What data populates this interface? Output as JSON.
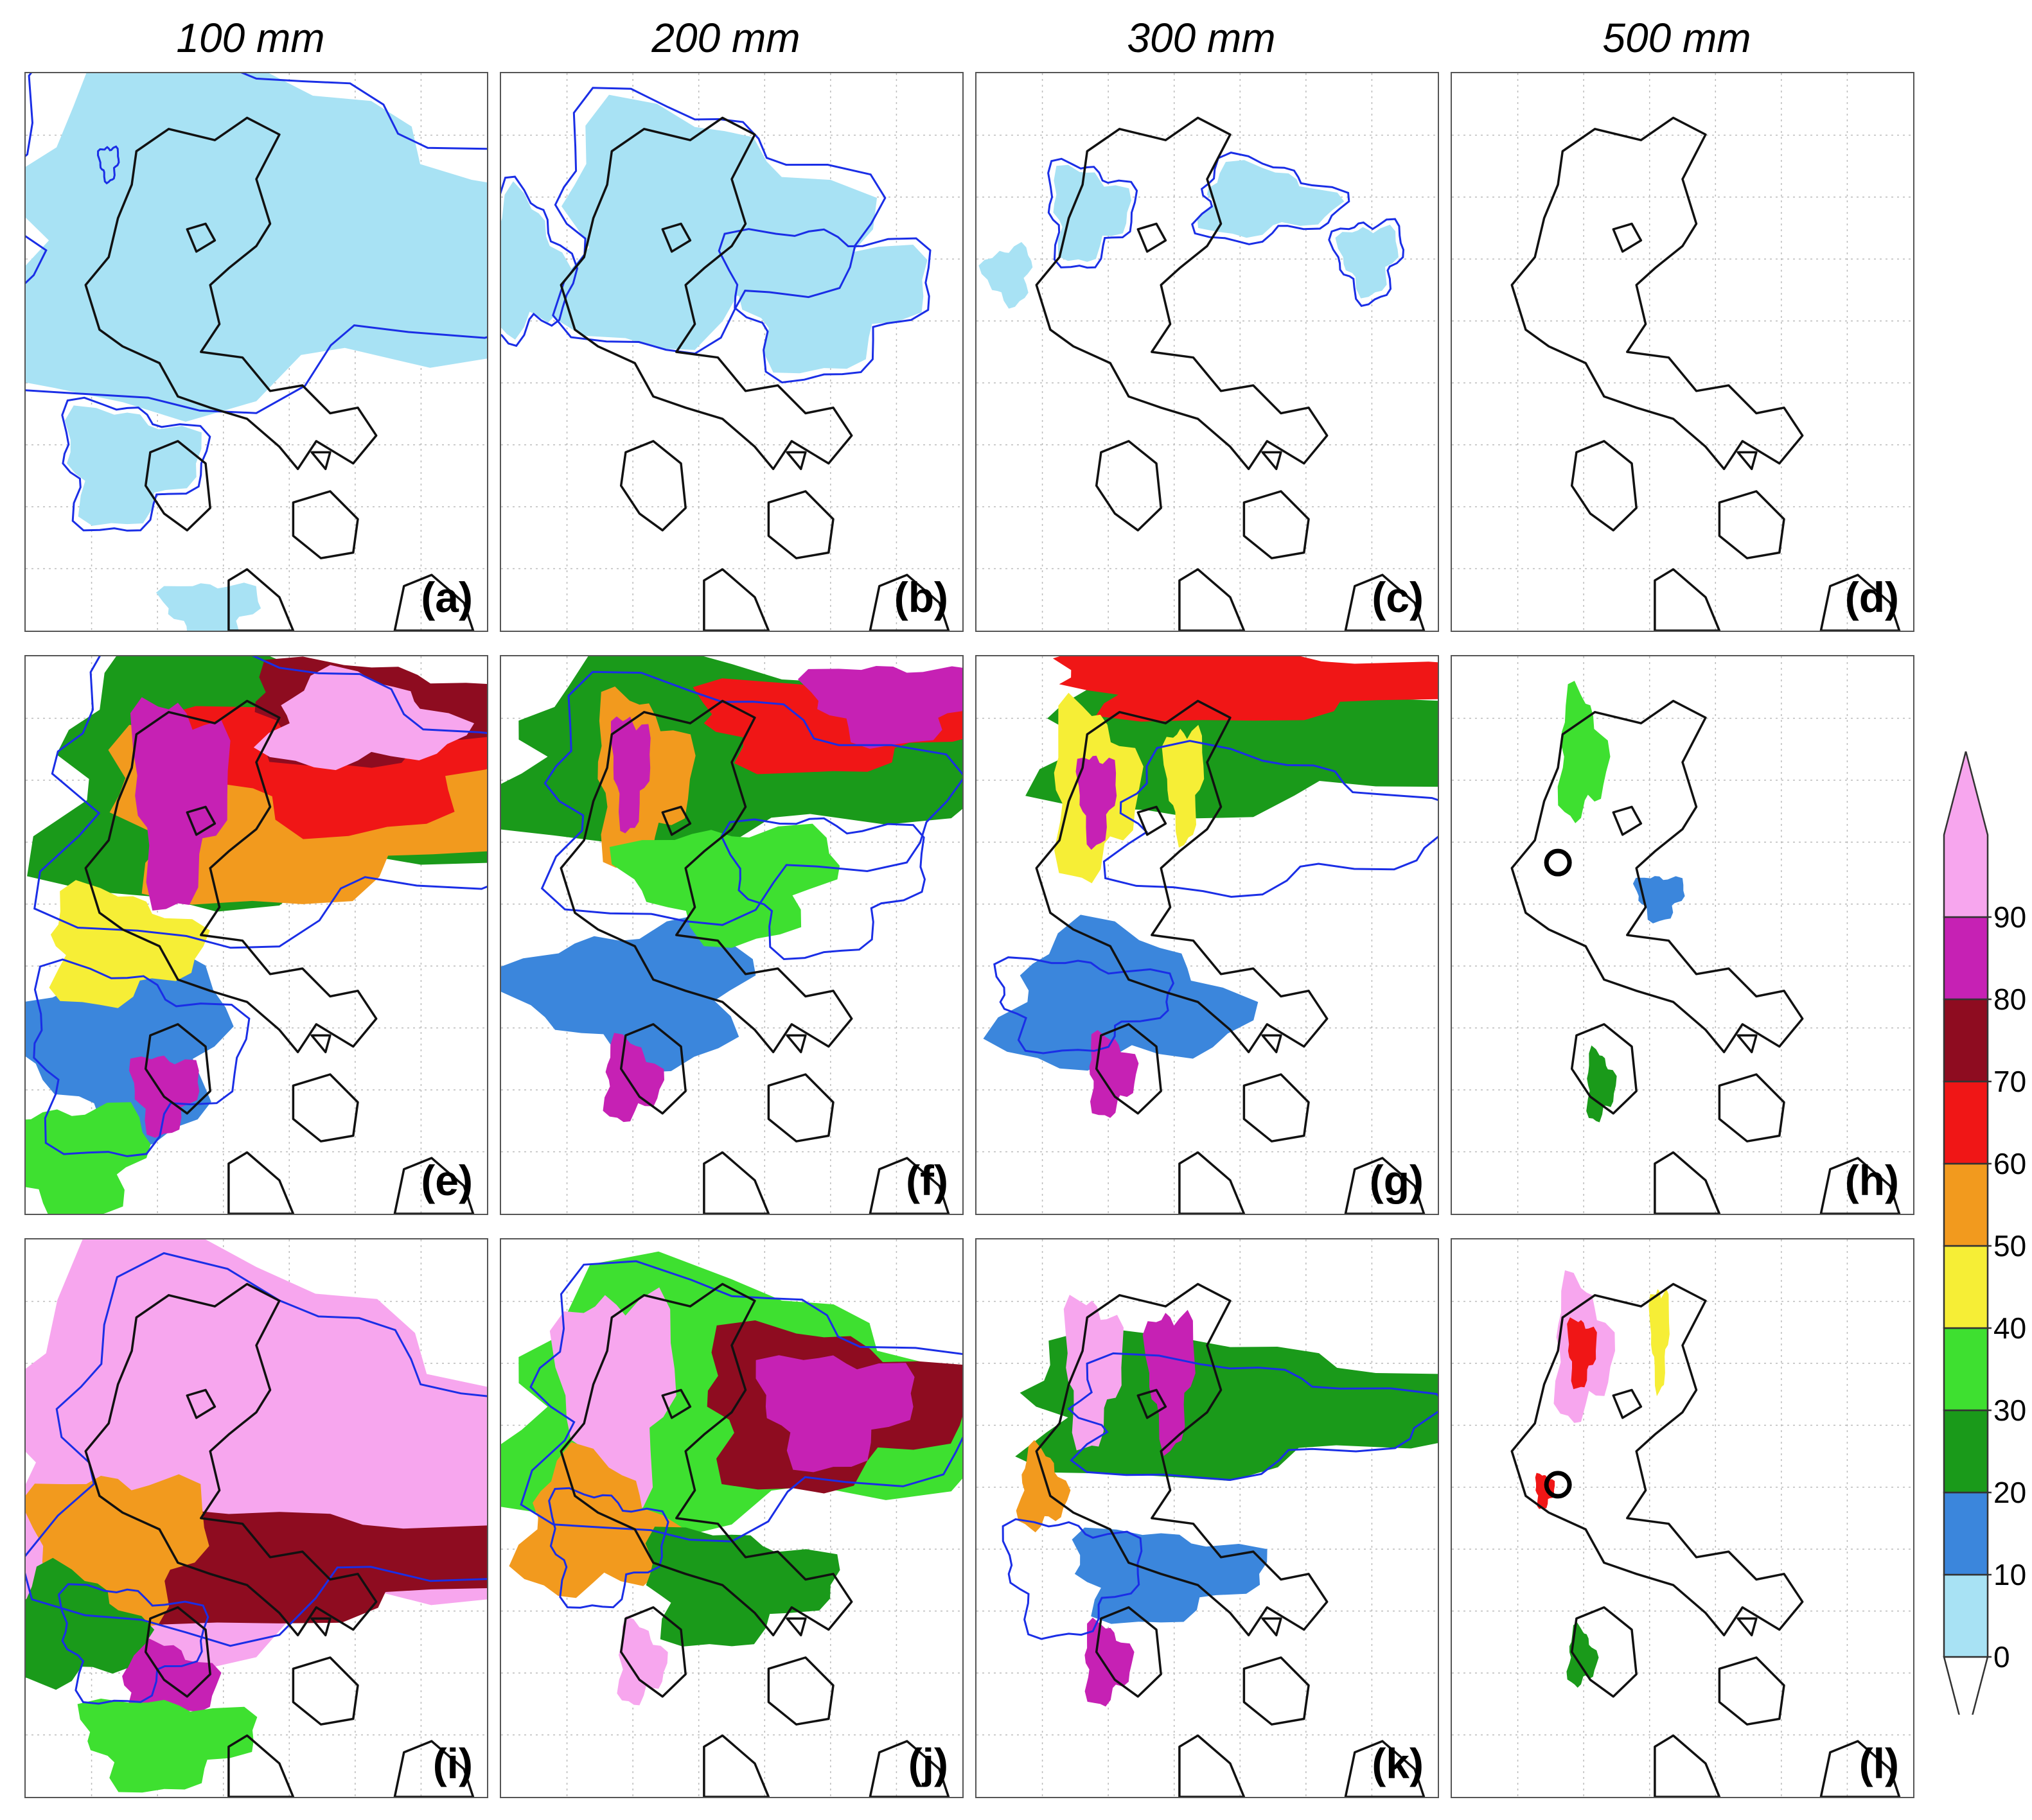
{
  "figure": {
    "column_titles": [
      "100 mm",
      "200 mm",
      "300 mm",
      "500 mm"
    ],
    "panel_labels": [
      "(a)",
      "(b)",
      "(c)",
      "(d)",
      "(e)",
      "(f)",
      "(g)",
      "(h)",
      "(i)",
      "(j)",
      "(k)",
      "(l)"
    ]
  },
  "chart_data": {
    "type": "heatmap",
    "layout": "3 rows x 4 columns of map panels",
    "columns": [
      "100 mm",
      "200 mm",
      "300 mm",
      "500 mm"
    ],
    "colorbar": {
      "ticks": [
        0,
        10,
        20,
        30,
        40,
        50,
        60,
        70,
        80,
        90
      ],
      "bins": [
        {
          "min": 0,
          "max": 10,
          "color": "#a8e2f4"
        },
        {
          "min": 10,
          "max": 20,
          "color": "#3b86dc"
        },
        {
          "min": 20,
          "max": 30,
          "color": "#1a9a1a"
        },
        {
          "min": 30,
          "max": 40,
          "color": "#3ee030"
        },
        {
          "min": 40,
          "max": 50,
          "color": "#f6ee36"
        },
        {
          "min": 50,
          "max": 60,
          "color": "#f29a1e"
        },
        {
          "min": 60,
          "max": 70,
          "color": "#f01616"
        },
        {
          "min": 70,
          "max": 80,
          "color": "#8e0c20"
        },
        {
          "min": 80,
          "max": 90,
          "color": "#c621b4"
        },
        {
          "min": 90,
          "max": null,
          "color": "#f7a6ee"
        }
      ],
      "extend": "both",
      "under_color": "#ffffff"
    },
    "colors": {
      "coastline": "#111111",
      "contour": "#1a2ee6",
      "marker": "#000000",
      "grid": "#bbbbbb"
    },
    "panels": [
      {
        "label": "(a)",
        "row": 1,
        "col": 1,
        "coverage": 0.55,
        "max_bin": 0,
        "circle": false
      },
      {
        "label": "(b)",
        "row": 1,
        "col": 2,
        "coverage": 0.3,
        "max_bin": 0,
        "circle": false
      },
      {
        "label": "(c)",
        "row": 1,
        "col": 3,
        "coverage": 0.07,
        "max_bin": 0,
        "circle": false
      },
      {
        "label": "(d)",
        "row": 1,
        "col": 4,
        "coverage": 0.0,
        "max_bin": 0,
        "circle": false
      },
      {
        "label": "(e)",
        "row": 2,
        "col": 1,
        "coverage": 0.75,
        "max_bin": 9,
        "circle": false
      },
      {
        "label": "(f)",
        "row": 2,
        "col": 2,
        "coverage": 0.6,
        "max_bin": 8,
        "circle": false
      },
      {
        "label": "(g)",
        "row": 2,
        "col": 3,
        "coverage": 0.55,
        "max_bin": 8,
        "circle": false
      },
      {
        "label": "(h)",
        "row": 2,
        "col": 4,
        "coverage": 0.08,
        "max_bin": 3,
        "circle": true
      },
      {
        "label": "(i)",
        "row": 3,
        "col": 1,
        "coverage": 0.85,
        "max_bin": 9,
        "circle": false
      },
      {
        "label": "(j)",
        "row": 3,
        "col": 2,
        "coverage": 0.7,
        "max_bin": 9,
        "circle": false
      },
      {
        "label": "(k)",
        "row": 3,
        "col": 3,
        "coverage": 0.45,
        "max_bin": 9,
        "circle": false
      },
      {
        "label": "(l)",
        "row": 3,
        "col": 4,
        "coverage": 0.1,
        "max_bin": 9,
        "circle": true
      }
    ]
  }
}
